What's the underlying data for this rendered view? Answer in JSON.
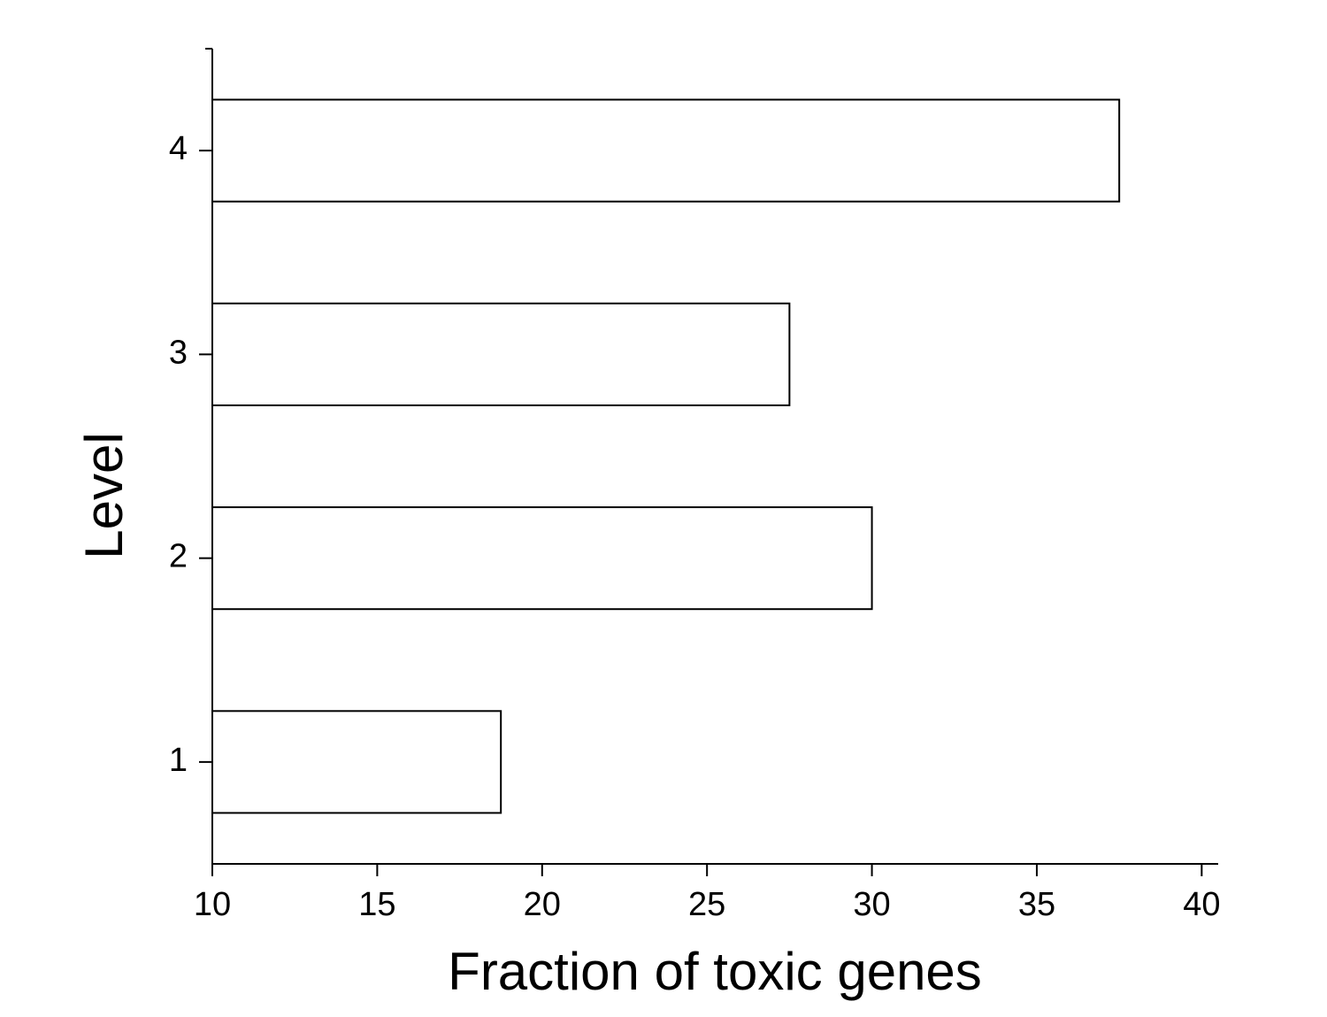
{
  "chart_data": {
    "type": "barh",
    "xlabel": "Fraction of toxic genes",
    "ylabel": "Level",
    "categories": [
      1,
      2,
      3,
      4
    ],
    "values": [
      18.75,
      30,
      27.5,
      37.5
    ],
    "color": "#ffffff",
    "xlim": [
      10,
      40.5
    ],
    "xticks": [
      10,
      15,
      20,
      25,
      30,
      35,
      40
    ],
    "ylim": [
      0.5,
      4.5
    ],
    "grid": false
  }
}
